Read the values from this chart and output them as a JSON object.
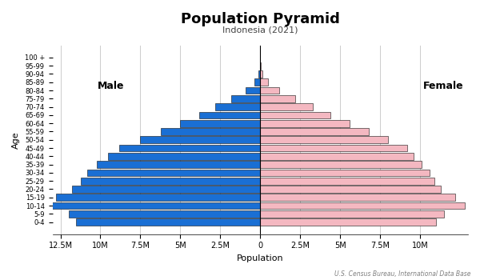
{
  "title": "Population Pyramid",
  "subtitle": "Indonesia (2021)",
  "xlabel": "Population",
  "ylabel": "Age",
  "source": "U.S. Census Bureau, International Data Base",
  "age_groups": [
    "0-4",
    "5-9",
    "10-14",
    "15-19",
    "20-24",
    "25-29",
    "30-34",
    "35-39",
    "40-44",
    "45-49",
    "50-54",
    "55-59",
    "60-64",
    "65-69",
    "70-74",
    "75-79",
    "80-84",
    "85-89",
    "90-94",
    "95-99",
    "100 +"
  ],
  "male": [
    11500000,
    12000000,
    13200000,
    12800000,
    11800000,
    11200000,
    10800000,
    10200000,
    9500000,
    8800000,
    7500000,
    6200000,
    5000000,
    3800000,
    2800000,
    1800000,
    900000,
    350000,
    100000,
    25000,
    5000
  ],
  "female": [
    11000000,
    11500000,
    12800000,
    12200000,
    11300000,
    10900000,
    10600000,
    10100000,
    9600000,
    9200000,
    8000000,
    6800000,
    5600000,
    4400000,
    3300000,
    2200000,
    1200000,
    500000,
    160000,
    40000,
    8000
  ],
  "male_color": "#1a6fd4",
  "female_color": "#f4b8c1",
  "bar_edgecolor": "#111111",
  "bar_linewidth": 0.4,
  "xlim_left": -13000000,
  "xlim_right": 13000000,
  "tick_positions": [
    -12500000,
    -10000000,
    -7500000,
    -5000000,
    -2500000,
    0,
    2500000,
    5000000,
    7500000,
    10000000
  ],
  "tick_labels": [
    "12.5M",
    "10M",
    "7.5M",
    "5M",
    "2.5M",
    "0",
    "2.5M",
    "5M",
    "7.5M",
    "10M"
  ],
  "background_color": "#ffffff",
  "grid_color": "#cccccc",
  "title_fontsize": 13,
  "subtitle_fontsize": 8,
  "ylabel_fontsize": 8,
  "xlabel_fontsize": 8,
  "ytick_fontsize": 6,
  "xtick_fontsize": 7,
  "label_fontsize": 9
}
